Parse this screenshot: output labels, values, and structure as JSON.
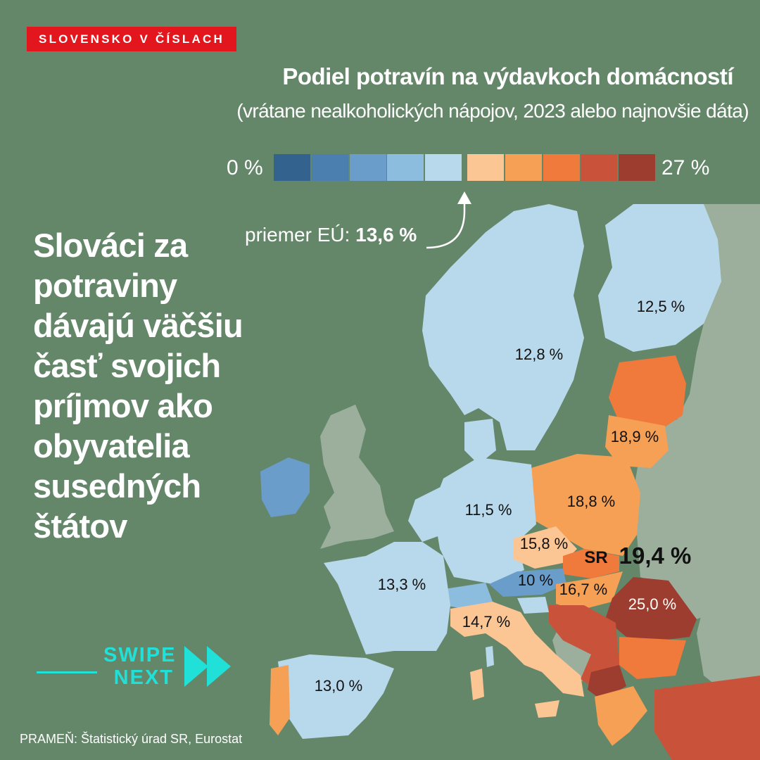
{
  "header": {
    "badge": "SLOVENSKO V ČÍSLACH",
    "title": "Podiel potravín na výdavkoch domácností",
    "subtitle": "(vrátane nealkoholických nápojov, 2023 alebo najnovšie dáta)"
  },
  "legend": {
    "min_label": "0 %",
    "max_label": "27 %",
    "colors": [
      "#33628f",
      "#4a7fb0",
      "#6a9dca",
      "#8cbddf",
      "#b8d8eb",
      "#fcc594",
      "#f5a055",
      "#ef7a3c",
      "#c9533a",
      "#9c3d2f"
    ],
    "eu_average_prefix": "priemer EÚ:",
    "eu_average_value": "13,6 %"
  },
  "headline": "Slováci za potraviny dávajú väčšiu časť svojich príjmov ako obyvatelia susedných štátov",
  "countries": {
    "finland": "12,5 %",
    "sweden": "12,8 %",
    "lithuania": "18,9 %",
    "poland": "18,8 %",
    "germany": "11,5 %",
    "czechia": "15,8 %",
    "slovakia_code": "SR",
    "slovakia": "19,4 %",
    "austria": "10 %",
    "hungary": "16,7 %",
    "romania": "25,0 %",
    "france": "13,3 %",
    "italy": "14,7 %",
    "spain": "13,0 %"
  },
  "swipe": {
    "line1": "SWIPE",
    "line2": "NEXT"
  },
  "source": "PRAMEŇ: Štatistický úrad SR, Eurostat",
  "colors": {
    "background": "#64876a",
    "sea": "#64876a",
    "non_eu_land": "#9caf9c",
    "badge_red": "#e3161e",
    "accent_cyan": "#20e0d8"
  }
}
